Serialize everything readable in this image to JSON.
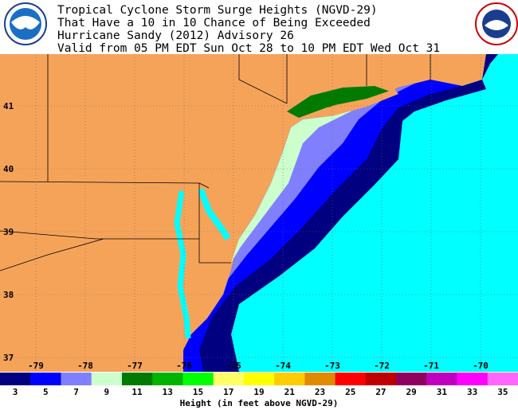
{
  "header": {
    "lines": [
      "Tropical Cyclone Storm Surge Heights (NGVD-29)",
      "That Have a 10 in 10 Chance of Being Exceeded",
      "Hurricane Sandy (2012) Advisory 26",
      "Valid from 05 PM EDT Sun Oct 28 to 10 PM EDT Wed Oct 31"
    ]
  },
  "map": {
    "lat_labels": [
      41,
      40,
      39,
      38,
      37
    ],
    "lon_labels": [
      -79,
      -78,
      -77,
      -76,
      -75,
      -74,
      -73,
      -72,
      -71,
      -70
    ]
  },
  "legend": {
    "colors": [
      "#000080",
      "#0000ff",
      "#8080ff",
      "#ccffcc",
      "#007a00",
      "#00b400",
      "#00ff00",
      "#ffff66",
      "#ffff00",
      "#ffcc00",
      "#e08a00",
      "#ff0000",
      "#c00000",
      "#900060",
      "#c000c0",
      "#ff00ff",
      "#ff66ff"
    ],
    "labels": [
      3,
      5,
      7,
      9,
      11,
      13,
      15,
      17,
      19,
      21,
      23,
      25,
      27,
      29,
      31,
      33,
      35
    ],
    "title": "Height (in feet above NGVD-29)"
  }
}
